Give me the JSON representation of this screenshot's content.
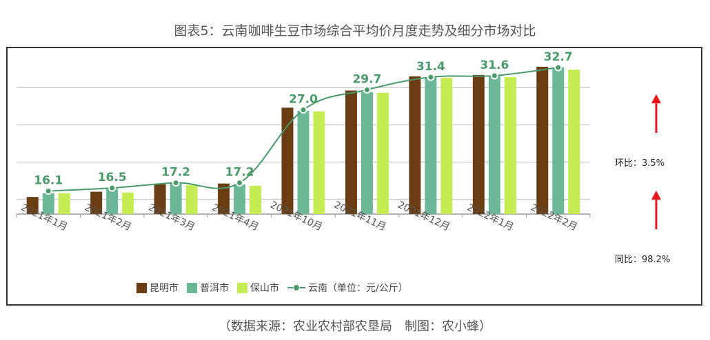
{
  "title": "图表5：云南咖啡生豆市场综合平均价月度走势及细分市场对比",
  "source": "（数据来源：农业农村部农垦局　制图：农小蜂）",
  "side": {
    "mom_label": "环比：3.5%",
    "yoy_label": "同比：98.2%"
  },
  "colors": {
    "kunming": "#6b3d12",
    "puer": "#6cb896",
    "baoshan": "#c5ec52",
    "yunnan": "#4a9a6b",
    "arrow": "#e8141a"
  },
  "chart_data": {
    "type": "bar",
    "categories": [
      "2021年1月",
      "2021年2月",
      "2021年3月",
      "2021年4月",
      "2021年10月",
      "2021年11月",
      "2021年12月",
      "2022年1月",
      "2022年2月"
    ],
    "series": [
      {
        "name": "昆明市",
        "type": "bar",
        "values": [
          15.3,
          16.0,
          17.0,
          17.1,
          27.3,
          29.6,
          31.5,
          31.7,
          32.8
        ]
      },
      {
        "name": "普洱市",
        "type": "bar",
        "values": [
          15.8,
          16.4,
          17.1,
          17.0,
          26.9,
          29.4,
          31.4,
          31.6,
          32.7
        ]
      },
      {
        "name": "保山市",
        "type": "bar",
        "values": [
          15.8,
          15.9,
          16.9,
          16.8,
          26.8,
          29.3,
          31.3,
          31.4,
          32.4
        ]
      },
      {
        "name": "云南（单位：元/公斤）",
        "type": "line",
        "values": [
          16.1,
          16.5,
          17.2,
          17.2,
          27.0,
          29.7,
          31.4,
          31.6,
          32.7
        ]
      }
    ],
    "line_labels": [
      "16.1",
      "16.5",
      "17.2",
      "17.2",
      "27.0",
      "29.7",
      "31.4",
      "31.6",
      "32.7"
    ],
    "ylim": [
      13,
      34
    ],
    "grid": true,
    "legend": "bottom"
  }
}
